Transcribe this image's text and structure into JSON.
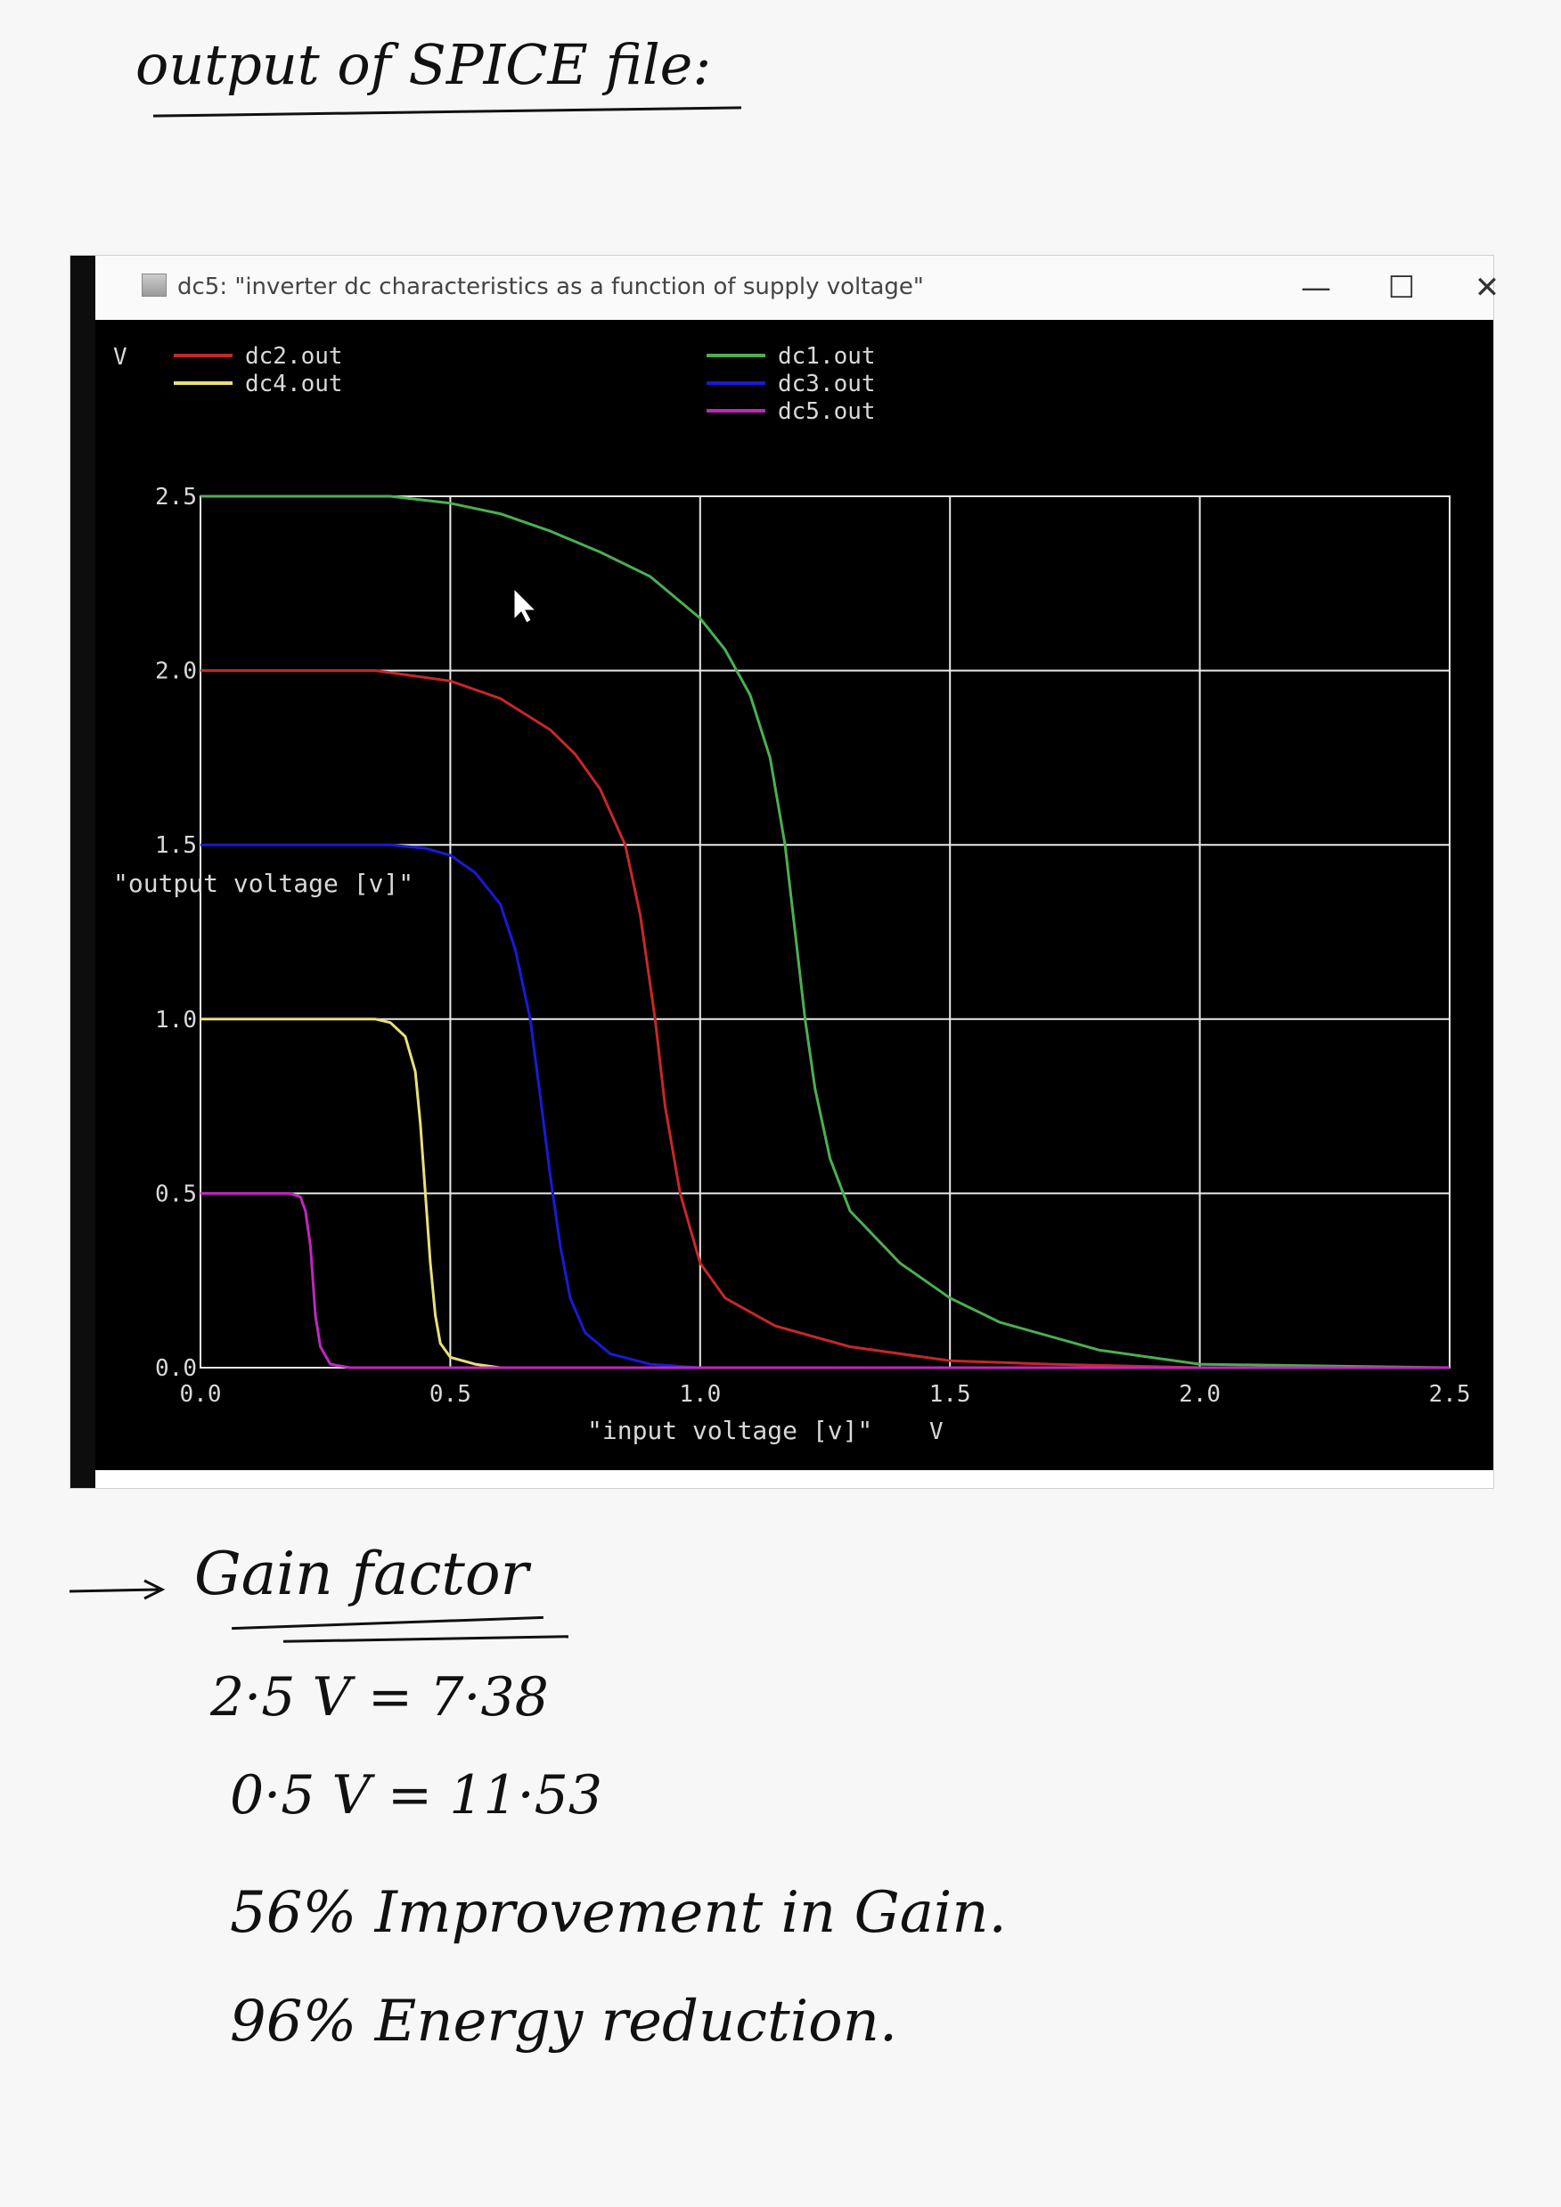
{
  "notes": {
    "heading": "output of SPICE file:",
    "gain_title": "Gain factor",
    "gain_lines": [
      "2·5 V   =  7·38",
      "0·5 V   =  11·53",
      "56% Improvement in Gain.",
      "96% Energy reduction."
    ]
  },
  "window": {
    "title": "dc5: \"inverter dc characteristics as a function of supply voltage\"",
    "controls": {
      "minimize": "—",
      "maximize": "☐",
      "close": "✕"
    }
  },
  "colors": {
    "background": "#000000",
    "grid": "#e8e8e8",
    "dc1": "#4caf50",
    "dc2": "#c62828",
    "dc3": "#1a1ad6",
    "dc4": "#e8e07a",
    "dc5": "#c026c0"
  },
  "chart_data": {
    "type": "line",
    "title": "dc5: \"inverter dc characteristics as a function of supply voltage\"",
    "xlabel": "\"input voltage [v]\"",
    "xunit": "V",
    "ylabel": "\"output voltage [v]\"",
    "yunit": "V",
    "xlim": [
      0,
      2.5
    ],
    "ylim": [
      0,
      2.5
    ],
    "xticks": [
      "0.0",
      "0.5",
      "1.0",
      "1.5",
      "2.0",
      "2.5"
    ],
    "yticks": [
      "0.0",
      "0.5",
      "1.0",
      "1.5",
      "2.0",
      "2.5"
    ],
    "grid": true,
    "legend_position": "top",
    "series": [
      {
        "name": "dc2.out",
        "color_key": "dc2",
        "x": [
          0.0,
          0.35,
          0.4,
          0.5,
          0.6,
          0.7,
          0.75,
          0.8,
          0.85,
          0.88,
          0.91,
          0.93,
          0.96,
          1.0,
          1.05,
          1.15,
          1.3,
          1.5,
          1.7,
          2.0,
          2.5
        ],
        "y": [
          2.0,
          2.0,
          1.99,
          1.97,
          1.92,
          1.83,
          1.76,
          1.66,
          1.5,
          1.3,
          1.0,
          0.75,
          0.5,
          0.3,
          0.2,
          0.12,
          0.06,
          0.02,
          0.01,
          0.0,
          0.0
        ]
      },
      {
        "name": "dc4.out",
        "color_key": "dc4",
        "x": [
          0.0,
          0.35,
          0.38,
          0.41,
          0.43,
          0.44,
          0.45,
          0.46,
          0.47,
          0.48,
          0.5,
          0.55,
          0.6,
          2.5
        ],
        "y": [
          1.0,
          1.0,
          0.99,
          0.95,
          0.85,
          0.7,
          0.5,
          0.3,
          0.15,
          0.07,
          0.03,
          0.01,
          0.0,
          0.0
        ]
      },
      {
        "name": "dc1.out",
        "color_key": "dc1",
        "x": [
          0.0,
          0.38,
          0.5,
          0.6,
          0.7,
          0.8,
          0.9,
          1.0,
          1.05,
          1.1,
          1.14,
          1.17,
          1.19,
          1.21,
          1.23,
          1.26,
          1.3,
          1.4,
          1.5,
          1.6,
          1.8,
          2.0,
          2.5
        ],
        "y": [
          2.5,
          2.5,
          2.48,
          2.45,
          2.4,
          2.34,
          2.27,
          2.15,
          2.06,
          1.93,
          1.75,
          1.5,
          1.25,
          1.0,
          0.8,
          0.6,
          0.45,
          0.3,
          0.2,
          0.13,
          0.05,
          0.01,
          0.0
        ]
      },
      {
        "name": "dc3.out",
        "color_key": "dc3",
        "x": [
          0.0,
          0.38,
          0.45,
          0.5,
          0.55,
          0.6,
          0.63,
          0.66,
          0.68,
          0.7,
          0.72,
          0.74,
          0.77,
          0.82,
          0.9,
          1.0,
          2.5
        ],
        "y": [
          1.5,
          1.5,
          1.49,
          1.47,
          1.42,
          1.33,
          1.2,
          1.0,
          0.78,
          0.55,
          0.35,
          0.2,
          0.1,
          0.04,
          0.01,
          0.0,
          0.0
        ]
      },
      {
        "name": "dc5.out",
        "color_key": "dc5",
        "x": [
          0.0,
          0.18,
          0.2,
          0.21,
          0.22,
          0.225,
          0.23,
          0.24,
          0.26,
          0.3,
          2.5
        ],
        "y": [
          0.5,
          0.5,
          0.49,
          0.45,
          0.35,
          0.25,
          0.15,
          0.06,
          0.01,
          0.0,
          0.0
        ]
      }
    ]
  }
}
